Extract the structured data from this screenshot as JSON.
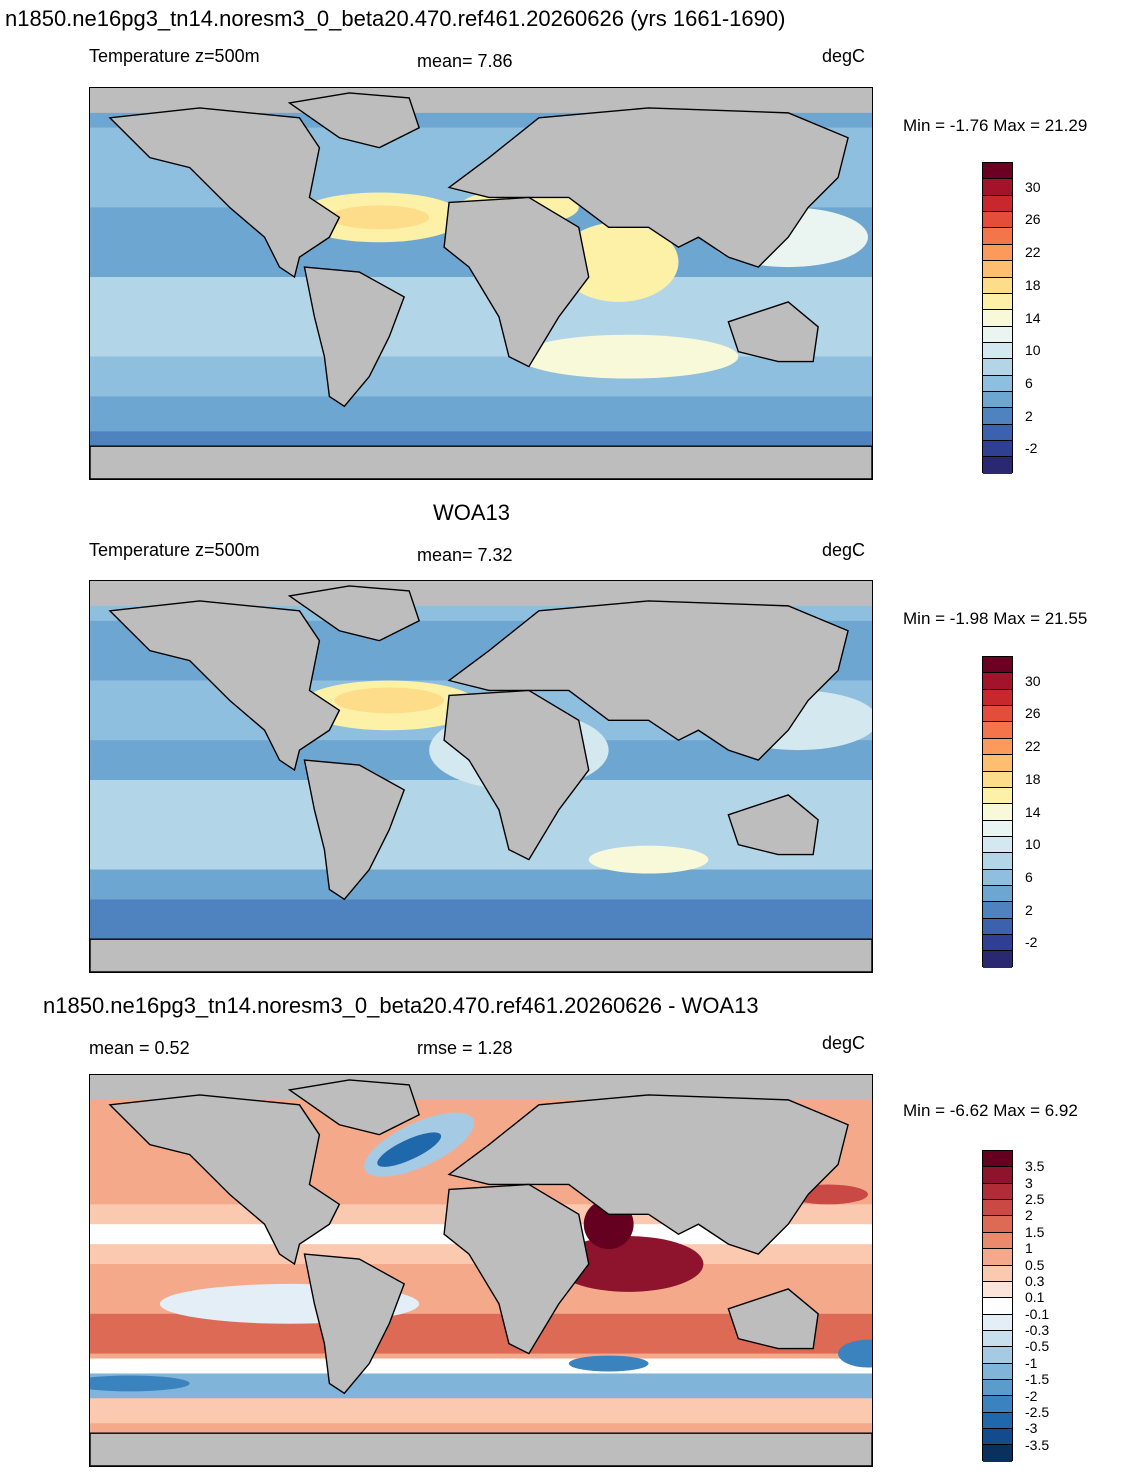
{
  "figure_title": "n1850.ne16pg3_tn14.noresm3_0_beta20.470.ref461.20260626 (yrs 1661-1690)",
  "colors": {
    "land": "#bdbdbd",
    "coast": "#000000",
    "temp_levels": [
      "#2b2872",
      "#2f3f93",
      "#3b62ad",
      "#4f83c0",
      "#6ea6d2",
      "#8fbfdf",
      "#b2d5e8",
      "#d3e8ef",
      "#eaf4f0",
      "#f7f9d8",
      "#fdf1a8",
      "#fedd8a",
      "#fdbf6f",
      "#fb9a5a",
      "#f4754a",
      "#e34d3a",
      "#c8282d",
      "#a3132a",
      "#6b0022"
    ],
    "diff_levels": [
      "#0a305e",
      "#124c8c",
      "#1f68ac",
      "#3a83bf",
      "#5c9ccc",
      "#80b4d9",
      "#a5cae4",
      "#c8dfee",
      "#e3eef6",
      "#ffffff",
      "#fde4d8",
      "#fbc8b0",
      "#f5a98b",
      "#ea8a6c",
      "#dc6a55",
      "#c94a44",
      "#b02c37",
      "#8e142d",
      "#650020"
    ]
  },
  "chart_data": [
    {
      "type": "heatmap",
      "title": "n1850.ne16pg3_tn14.noresm3_0_beta20.470.ref461.20260626 (yrs 1661-1690)",
      "left_label": "Temperature z=500m",
      "center_label": "mean=   7.86",
      "units": "degC",
      "mean": 7.86,
      "min": -1.76,
      "max": 21.29,
      "minmax_text": "Min =  -1.76 Max =  21.29",
      "colorbar_ticks": [
        "30",
        "26",
        "22",
        "18",
        "14",
        "10",
        "6",
        "2",
        "-2"
      ]
    },
    {
      "type": "heatmap",
      "title": "WOA13",
      "left_label": "Temperature z=500m",
      "center_label": "mean=   7.32",
      "units": "degC",
      "mean": 7.32,
      "min": -1.98,
      "max": 21.55,
      "minmax_text": "Min =  -1.98 Max =  21.55",
      "colorbar_ticks": [
        "30",
        "26",
        "22",
        "18",
        "14",
        "10",
        "6",
        "2",
        "-2"
      ]
    },
    {
      "type": "heatmap",
      "title": "n1850.ne16pg3_tn14.noresm3_0_beta20.470.ref461.20260626 - WOA13",
      "left_label": "mean =   0.52",
      "center_label": "rmse =   1.28",
      "units": "degC",
      "mean": 0.52,
      "rmse": 1.28,
      "min": -6.62,
      "max": 6.92,
      "minmax_text": "Min =  -6.62 Max =   6.92",
      "colorbar_ticks": [
        "3.5",
        "3",
        "2.5",
        "2",
        "1.5",
        "1",
        "0.5",
        "0.3",
        "0.1",
        "-0.1",
        "-0.3",
        "-0.5",
        "-1",
        "-1.5",
        "-2",
        "-2.5",
        "-3",
        "-3.5"
      ]
    }
  ]
}
